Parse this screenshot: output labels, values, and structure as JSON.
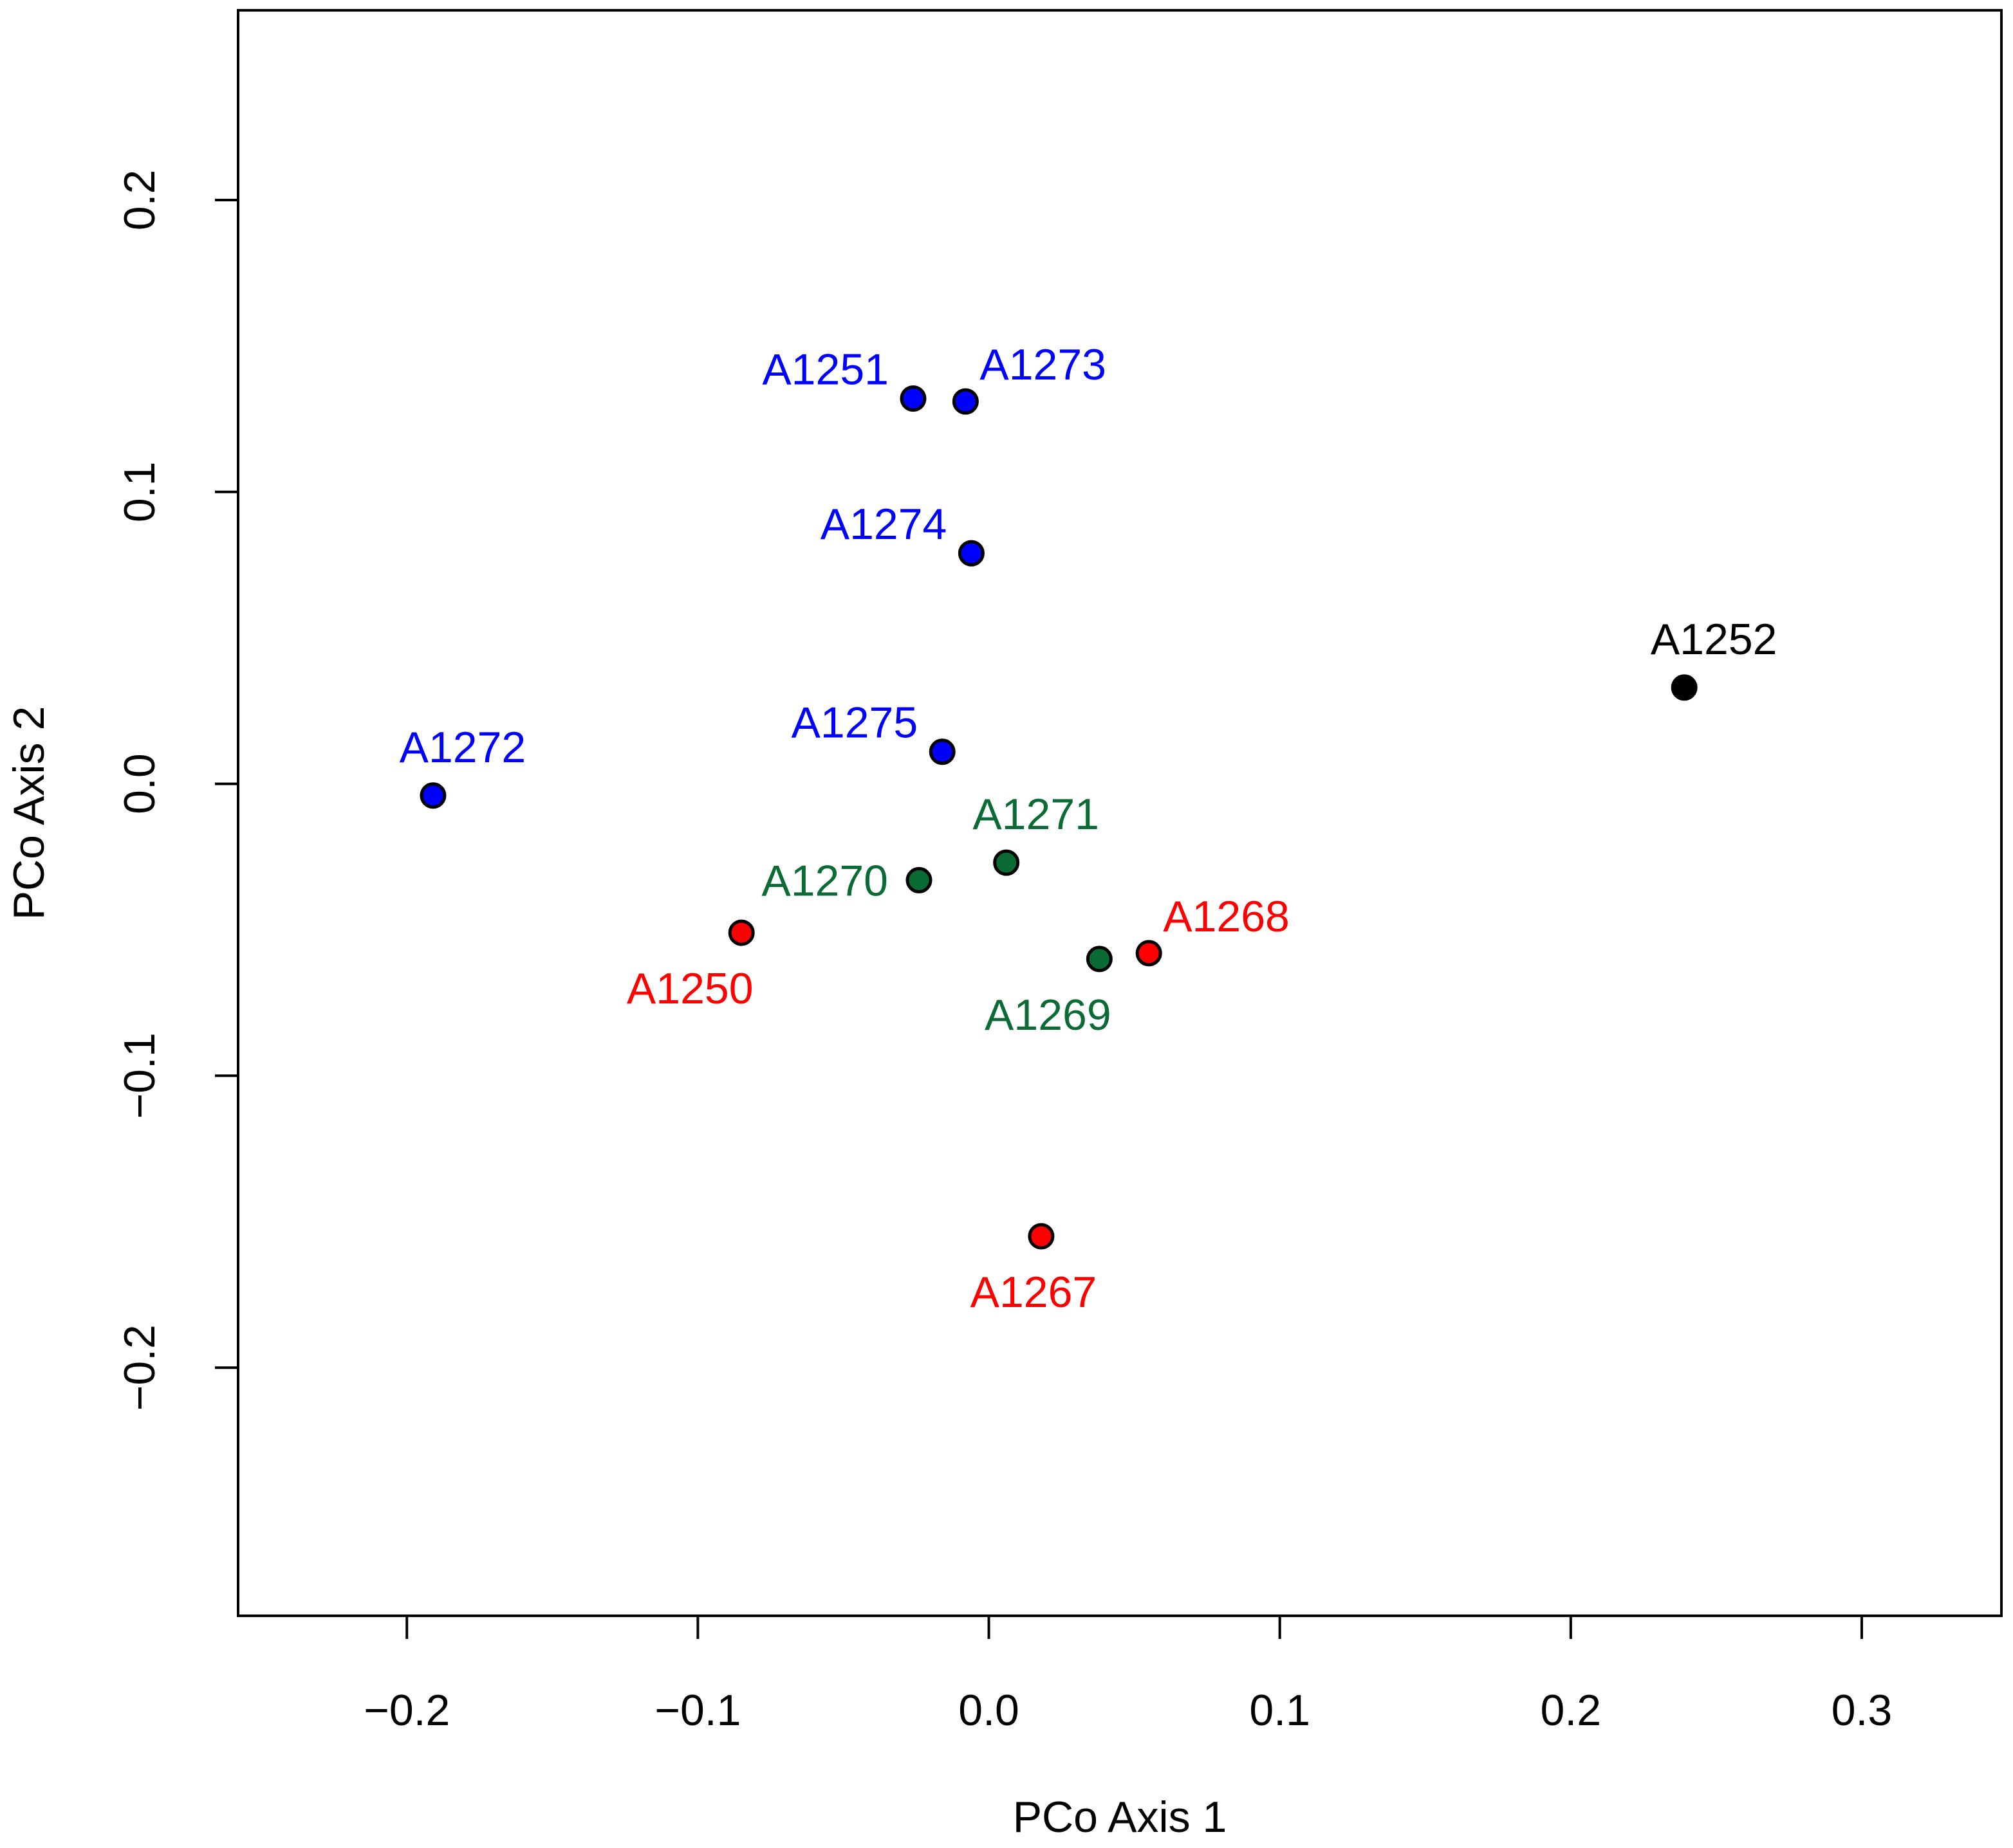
{
  "chart_data": {
    "type": "scatter",
    "title": "",
    "xlabel": "PCo Axis 1",
    "ylabel": "PCo Axis 2",
    "xlim": [
      -0.258,
      0.348
    ],
    "ylim": [
      -0.285,
      0.265
    ],
    "xticks": [
      -0.2,
      -0.1,
      0.0,
      0.1,
      0.2,
      0.3
    ],
    "xtick_labels": [
      "−0.2",
      "−0.1",
      "0.0",
      "0.1",
      "0.2",
      "0.3"
    ],
    "yticks": [
      -0.2,
      -0.1,
      0.0,
      0.1,
      0.2
    ],
    "ytick_labels": [
      "−0.2",
      "−0.1",
      "0.0",
      "0.1",
      "0.2"
    ],
    "grid": false,
    "legend": "none",
    "groups": {
      "blue": "#0000ff",
      "green": "#0b6b35",
      "red": "#ff0000",
      "black": "#000000"
    },
    "points": [
      {
        "label": "A1251",
        "x": -0.026,
        "y": 0.132,
        "group": "blue",
        "label_pos": "upper-left"
      },
      {
        "label": "A1273",
        "x": -0.008,
        "y": 0.131,
        "group": "blue",
        "label_pos": "upper-right"
      },
      {
        "label": "A1274",
        "x": -0.006,
        "y": 0.079,
        "group": "blue",
        "label_pos": "upper-left"
      },
      {
        "label": "A1275",
        "x": -0.016,
        "y": 0.011,
        "group": "blue",
        "label_pos": "upper-left"
      },
      {
        "label": "A1272",
        "x": -0.191,
        "y": -0.004,
        "group": "blue",
        "label_pos": "above"
      },
      {
        "label": "A1252",
        "x": 0.239,
        "y": 0.033,
        "group": "black",
        "label_pos": "above"
      },
      {
        "label": "A1271",
        "x": 0.006,
        "y": -0.027,
        "group": "green",
        "label_pos": "above"
      },
      {
        "label": "A1270",
        "x": -0.024,
        "y": -0.033,
        "group": "green",
        "label_pos": "left"
      },
      {
        "label": "A1269",
        "x": 0.038,
        "y": -0.06,
        "group": "green",
        "label_pos": "below-left"
      },
      {
        "label": "A1250",
        "x": -0.085,
        "y": -0.051,
        "group": "red",
        "label_pos": "below-left"
      },
      {
        "label": "A1268",
        "x": 0.055,
        "y": -0.058,
        "group": "red",
        "label_pos": "upper-right"
      },
      {
        "label": "A1267",
        "x": 0.018,
        "y": -0.155,
        "group": "red",
        "label_pos": "below"
      }
    ]
  }
}
